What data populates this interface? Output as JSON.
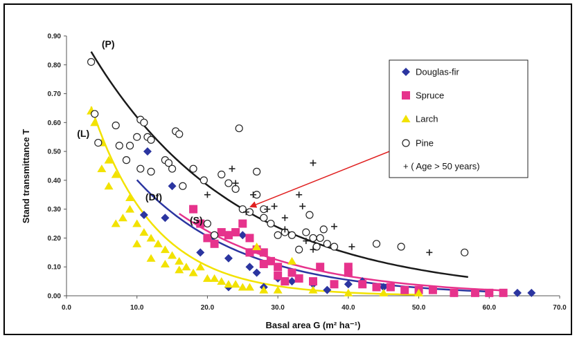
{
  "chart_data": {
    "type": "scatter",
    "xlabel": "Basal area G (m² ha⁻¹)",
    "ylabel": "Stand transmittance T",
    "xlim": [
      0,
      70
    ],
    "ylim": [
      0,
      0.9
    ],
    "xticks": [
      "0.0",
      "10.0",
      "20.0",
      "30.0",
      "40.0",
      "50.0",
      "60.0",
      "70.0"
    ],
    "yticks": [
      "0.00",
      "0.10",
      "0.20",
      "0.30",
      "0.40",
      "0.50",
      "0.60",
      "0.70",
      "0.80",
      "0.90"
    ],
    "grid": false,
    "legend_position": "top-right",
    "legend": [
      {
        "label": "Douglas-fir",
        "marker": "diamond",
        "color": "#2b35a0"
      },
      {
        "label": "Spruce",
        "marker": "square",
        "color": "#e6338c"
      },
      {
        "label": "Larch",
        "marker": "triangle",
        "color": "#f2e200"
      },
      {
        "label": "Pine",
        "marker": "circle-open",
        "color": "#222222"
      },
      {
        "label": "+ ( Age > 50 years)",
        "marker": "plus",
        "color": "#222222"
      }
    ],
    "curve_labels": [
      {
        "text": "(P)",
        "x": 5,
        "y": 0.86
      },
      {
        "text": "(L)",
        "x": 1.5,
        "y": 0.55
      },
      {
        "text": "(Df)",
        "x": 11.2,
        "y": 0.33
      },
      {
        "text": "(S)",
        "x": 17.5,
        "y": 0.25
      }
    ],
    "curves": [
      {
        "name": "",
        "label": "(P)",
        "color": "#1a1a1a",
        "x0": 3.5,
        "x1": 57,
        "a": 1.0,
        "b": 0.048
      },
      {
        "name": "",
        "label": "(L)",
        "color": "#f2e200",
        "x0": 3.5,
        "x1": 50,
        "a": 0.97,
        "b": 0.112
      },
      {
        "name": "",
        "label": "(Df)",
        "color": "#2b35a0",
        "x0": 10,
        "x1": 60,
        "a": 0.78,
        "b": 0.0665
      },
      {
        "name": "",
        "label": "(S)",
        "color": "#e6338c",
        "x0": 16,
        "x1": 62,
        "a": 0.74,
        "b": 0.0597
      }
    ],
    "annotation": {
      "text": "",
      "from_x": 26.5,
      "from_y": 0.43,
      "to_x": 25.5,
      "to_y": 0.295
    },
    "series": [
      {
        "name": "Douglas-fir",
        "marker": "diamond",
        "color": "#2b35a0",
        "points": [
          [
            11.5,
            0.5
          ],
          [
            14,
            0.27
          ],
          [
            11,
            0.28
          ],
          [
            15,
            0.38
          ],
          [
            18,
            0.3
          ],
          [
            19,
            0.15
          ],
          [
            23,
            0.13
          ],
          [
            23,
            0.03
          ],
          [
            25,
            0.21
          ],
          [
            26,
            0.1
          ],
          [
            27,
            0.08
          ],
          [
            28,
            0.03
          ],
          [
            30,
            0.06
          ],
          [
            32,
            0.05
          ],
          [
            35,
            0.04
          ],
          [
            37,
            0.02
          ],
          [
            40,
            0.04
          ],
          [
            42,
            0.05
          ],
          [
            45,
            0.03
          ],
          [
            48,
            0.02
          ],
          [
            52,
            0.02
          ],
          [
            55,
            0.01
          ],
          [
            58,
            0.01
          ],
          [
            60,
            0.01
          ],
          [
            64,
            0.01
          ],
          [
            66,
            0.01
          ]
        ]
      },
      {
        "name": "Spruce",
        "marker": "square",
        "color": "#e6338c",
        "points": [
          [
            18,
            0.3
          ],
          [
            19,
            0.25
          ],
          [
            20,
            0.2
          ],
          [
            21,
            0.18
          ],
          [
            22,
            0.22
          ],
          [
            23,
            0.21
          ],
          [
            24,
            0.22
          ],
          [
            25,
            0.25
          ],
          [
            26,
            0.2
          ],
          [
            26,
            0.15
          ],
          [
            27,
            0.16
          ],
          [
            28,
            0.15
          ],
          [
            28,
            0.11
          ],
          [
            29,
            0.12
          ],
          [
            30,
            0.1
          ],
          [
            30,
            0.07
          ],
          [
            31,
            0.05
          ],
          [
            32,
            0.08
          ],
          [
            33,
            0.06
          ],
          [
            35,
            0.05
          ],
          [
            36,
            0.1
          ],
          [
            38,
            0.04
          ],
          [
            40,
            0.1
          ],
          [
            40,
            0.08
          ],
          [
            42,
            0.04
          ],
          [
            44,
            0.03
          ],
          [
            46,
            0.03
          ],
          [
            48,
            0.02
          ],
          [
            50,
            0.02
          ],
          [
            52,
            0.02
          ],
          [
            55,
            0.01
          ],
          [
            58,
            0.01
          ],
          [
            60,
            0.01
          ],
          [
            62,
            0.01
          ]
        ]
      },
      {
        "name": "Larch",
        "marker": "triangle",
        "color": "#f2e200",
        "points": [
          [
            3.5,
            0.64
          ],
          [
            4,
            0.6
          ],
          [
            5,
            0.53
          ],
          [
            6,
            0.47
          ],
          [
            6,
            0.38
          ],
          [
            7,
            0.42
          ],
          [
            5,
            0.44
          ],
          [
            7,
            0.25
          ],
          [
            8,
            0.27
          ],
          [
            9,
            0.34
          ],
          [
            9,
            0.3
          ],
          [
            10,
            0.25
          ],
          [
            10,
            0.18
          ],
          [
            11,
            0.22
          ],
          [
            12,
            0.2
          ],
          [
            12,
            0.13
          ],
          [
            13,
            0.18
          ],
          [
            14,
            0.16
          ],
          [
            14,
            0.11
          ],
          [
            15,
            0.14
          ],
          [
            16,
            0.12
          ],
          [
            16,
            0.09
          ],
          [
            17,
            0.1
          ],
          [
            18,
            0.08
          ],
          [
            19,
            0.1
          ],
          [
            20,
            0.06
          ],
          [
            21,
            0.06
          ],
          [
            22,
            0.05
          ],
          [
            23,
            0.04
          ],
          [
            24,
            0.04
          ],
          [
            25,
            0.03
          ],
          [
            26,
            0.03
          ],
          [
            27,
            0.17
          ],
          [
            28,
            0.02
          ],
          [
            30,
            0.02
          ],
          [
            32,
            0.12
          ],
          [
            35,
            0.02
          ],
          [
            40,
            0.01
          ],
          [
            45,
            0.01
          ],
          [
            50,
            0.01
          ]
        ]
      },
      {
        "name": "Pine",
        "marker": "circle-open",
        "color": "#222222",
        "points": [
          [
            3.5,
            0.81
          ],
          [
            4,
            0.63
          ],
          [
            4.5,
            0.53
          ],
          [
            7,
            0.59
          ],
          [
            7.5,
            0.52
          ],
          [
            8.5,
            0.47
          ],
          [
            9,
            0.52
          ],
          [
            10,
            0.55
          ],
          [
            10.5,
            0.61
          ],
          [
            11,
            0.6
          ],
          [
            10.5,
            0.44
          ],
          [
            11.5,
            0.55
          ],
          [
            12,
            0.54
          ],
          [
            12,
            0.43
          ],
          [
            14,
            0.47
          ],
          [
            14.5,
            0.46
          ],
          [
            15,
            0.44
          ],
          [
            15.5,
            0.57
          ],
          [
            16,
            0.56
          ],
          [
            16.5,
            0.38
          ],
          [
            18,
            0.44
          ],
          [
            19.5,
            0.4
          ],
          [
            20,
            0.25
          ],
          [
            21,
            0.21
          ],
          [
            22,
            0.42
          ],
          [
            23,
            0.39
          ],
          [
            24,
            0.37
          ],
          [
            24.5,
            0.58
          ],
          [
            25,
            0.3
          ],
          [
            26,
            0.29
          ],
          [
            27,
            0.43
          ],
          [
            27,
            0.35
          ],
          [
            28,
            0.27
          ],
          [
            28,
            0.3
          ],
          [
            29,
            0.25
          ],
          [
            30,
            0.21
          ],
          [
            31,
            0.22
          ],
          [
            32,
            0.21
          ],
          [
            33,
            0.16
          ],
          [
            34,
            0.22
          ],
          [
            34.5,
            0.28
          ],
          [
            35,
            0.2
          ],
          [
            35.5,
            0.17
          ],
          [
            36,
            0.2
          ],
          [
            36.5,
            0.23
          ],
          [
            37,
            0.18
          ],
          [
            38,
            0.17
          ],
          [
            44,
            0.18
          ],
          [
            47.5,
            0.17
          ],
          [
            56.5,
            0.15
          ]
        ]
      },
      {
        "name": "+ ( Age > 50 years)",
        "marker": "plus",
        "color": "#222222",
        "points": [
          [
            20,
            0.35
          ],
          [
            23.5,
            0.44
          ],
          [
            24,
            0.39
          ],
          [
            25.5,
            0.29
          ],
          [
            26.5,
            0.35
          ],
          [
            28.5,
            0.3
          ],
          [
            29.5,
            0.31
          ],
          [
            31,
            0.27
          ],
          [
            31,
            0.23
          ],
          [
            33,
            0.35
          ],
          [
            33.5,
            0.31
          ],
          [
            34,
            0.19
          ],
          [
            35,
            0.46
          ],
          [
            35,
            0.16
          ],
          [
            38,
            0.24
          ],
          [
            40.5,
            0.17
          ],
          [
            51.5,
            0.15
          ]
        ]
      }
    ]
  }
}
